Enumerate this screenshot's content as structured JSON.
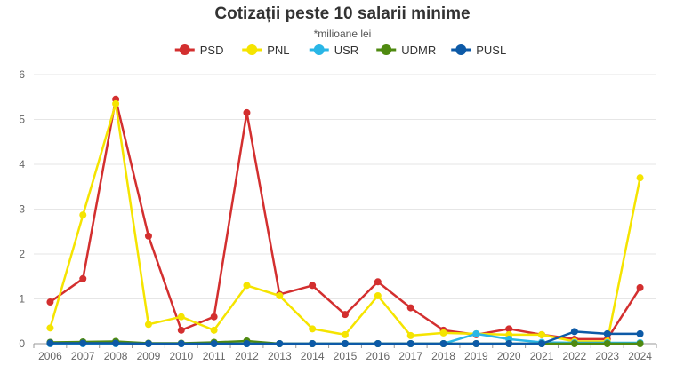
{
  "chart_data": {
    "type": "line",
    "title": "Cotizații peste 10 salarii minime",
    "subtitle": "*milioane lei",
    "legend_position": "top-center",
    "grid": true,
    "xlabel": "",
    "ylabel": "",
    "ylim": [
      0,
      6
    ],
    "y_ticks": [
      "0",
      "1",
      "2",
      "3",
      "4",
      "5",
      "6"
    ],
    "categories": [
      "2006",
      "2007",
      "2008",
      "2009",
      "2010",
      "2011",
      "2012",
      "2013",
      "2014",
      "2015",
      "2016",
      "2017",
      "2018",
      "2019",
      "2020",
      "2021",
      "2022",
      "2023",
      "2024"
    ],
    "series": [
      {
        "name": "PSD",
        "color": "#d32f2f",
        "values": [
          0.93,
          1.45,
          5.45,
          2.4,
          0.3,
          0.6,
          5.15,
          1.1,
          1.3,
          0.65,
          1.38,
          0.8,
          0.3,
          0.2,
          0.33,
          0.2,
          0.1,
          0.1,
          1.25
        ]
      },
      {
        "name": "PNL",
        "color": "#f5e400",
        "values": [
          0.35,
          2.87,
          5.35,
          0.43,
          0.6,
          0.3,
          1.3,
          1.07,
          0.33,
          0.2,
          1.07,
          0.18,
          0.24,
          0.22,
          0.2,
          0.2,
          0.05,
          0.05,
          3.7
        ]
      },
      {
        "name": "USR",
        "color": "#29b6e6",
        "values": [
          0,
          0,
          0,
          0,
          0,
          0,
          0,
          0,
          0,
          0,
          0,
          0,
          0,
          0.22,
          0.1,
          0.03,
          0.02,
          0.02,
          0.02
        ]
      },
      {
        "name": "UDMR",
        "color": "#4f8a10",
        "values": [
          0.03,
          0.04,
          0.05,
          0.01,
          0.01,
          0.03,
          0.06,
          0,
          0,
          0,
          0,
          0,
          0,
          0,
          0,
          0,
          0,
          0,
          0
        ]
      },
      {
        "name": "PUSL",
        "color": "#0d5aa7",
        "values": [
          0.01,
          0.01,
          0.01,
          0,
          0,
          0,
          0,
          0,
          0,
          0,
          0,
          0,
          0,
          0,
          0,
          0,
          0.27,
          0.22,
          0.22
        ]
      }
    ]
  }
}
